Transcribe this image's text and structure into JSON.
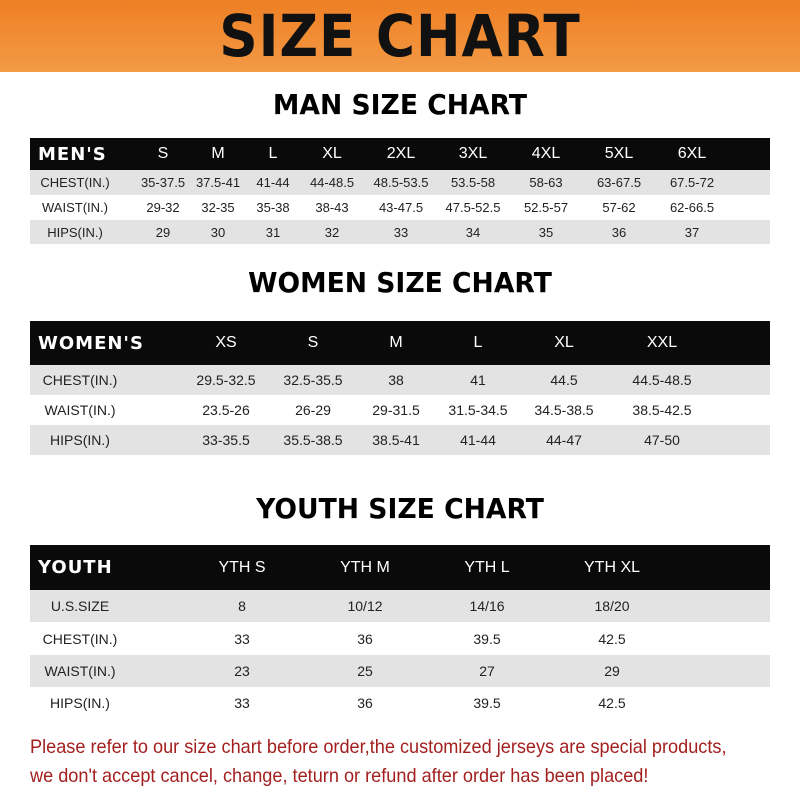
{
  "banner": {
    "title": "SIZE CHART",
    "color": "#f08a30"
  },
  "tables": [
    {
      "title": "MAN SIZE CHART",
      "header_label": "MEN'S",
      "sizes": [
        "S",
        "M",
        "L",
        "XL",
        "2XL",
        "3XL",
        "4XL",
        "5XL",
        "6XL"
      ],
      "rows": [
        {
          "label": "CHEST(IN.)",
          "values": [
            "35-37.5",
            "37.5-41",
            "41-44",
            "44-48.5",
            "48.5-53.5",
            "53.5-58",
            "58-63",
            "63-67.5",
            "67.5-72"
          ]
        },
        {
          "label": "WAIST(IN.)",
          "values": [
            "29-32",
            "32-35",
            "35-38",
            "38-43",
            "43-47.5",
            "47.5-52.5",
            "52.5-57",
            "57-62",
            "62-66.5"
          ]
        },
        {
          "label": "HIPS(IN.)",
          "values": [
            "29",
            "30",
            "31",
            "32",
            "33",
            "34",
            "35",
            "36",
            "37"
          ]
        }
      ]
    },
    {
      "title": "WOMEN SIZE CHART",
      "header_label": "WOMEN'S",
      "sizes": [
        "XS",
        "S",
        "M",
        "L",
        "XL",
        "XXL"
      ],
      "rows": [
        {
          "label": "CHEST(IN.)",
          "values": [
            "29.5-32.5",
            "32.5-35.5",
            "38",
            "41",
            "44.5",
            "44.5-48.5"
          ]
        },
        {
          "label": "WAIST(IN.)",
          "values": [
            "23.5-26",
            "26-29",
            "29-31.5",
            "31.5-34.5",
            "34.5-38.5",
            "38.5-42.5"
          ]
        },
        {
          "label": "HIPS(IN.)",
          "values": [
            "33-35.5",
            "35.5-38.5",
            "38.5-41",
            "41-44",
            "44-47",
            "47-50"
          ]
        }
      ]
    },
    {
      "title": "YOUTH SIZE CHART",
      "header_label": "YOUTH",
      "sizes": [
        "YTH S",
        "YTH M",
        "YTH L",
        "YTH XL"
      ],
      "rows": [
        {
          "label": "U.S.SIZE",
          "values": [
            "8",
            "10/12",
            "14/16",
            "18/20"
          ]
        },
        {
          "label": "CHEST(IN.)",
          "values": [
            "33",
            "36",
            "39.5",
            "42.5"
          ]
        },
        {
          "label": "WAIST(IN.)",
          "values": [
            "23",
            "25",
            "27",
            "29"
          ]
        },
        {
          "label": "HIPS(IN.)",
          "values": [
            "33",
            "36",
            "39.5",
            "42.5"
          ]
        }
      ]
    }
  ],
  "note": {
    "line1": "Please refer to our size chart before order,the customized jerseys are special products,",
    "line2": "we don't accept cancel, change, teturn or refund after order has been placed!",
    "color": "#a3201f"
  }
}
